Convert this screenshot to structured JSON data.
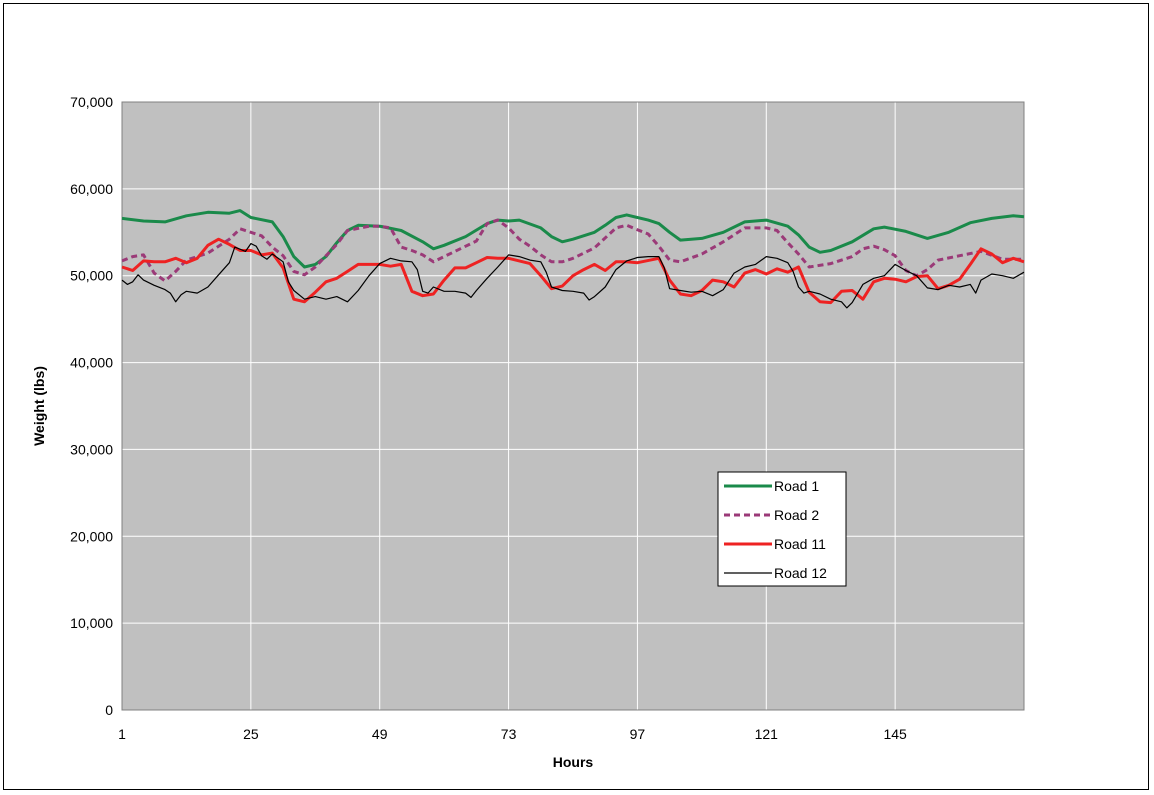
{
  "chart_data": {
    "type": "line",
    "title": "",
    "xlabel": "Hours",
    "ylabel": "Weight (lbs)",
    "ylim": [
      0,
      70000
    ],
    "xlim": [
      1,
      169
    ],
    "x_ticks": [
      1,
      25,
      49,
      73,
      97,
      121,
      145
    ],
    "y_ticks": [
      0,
      10000,
      20000,
      30000,
      40000,
      50000,
      60000,
      70000
    ],
    "y_tick_labels": [
      "0",
      "10,000",
      "20,000",
      "30,000",
      "40,000",
      "50,000",
      "60,000",
      "70,000"
    ],
    "grid": true,
    "plot_background": "#c0c0c0",
    "legend_position": "lower-right",
    "series": [
      {
        "name": "Road 1",
        "color": "#1a8a4a",
        "style": "solid",
        "width": 3,
        "points": [
          [
            1,
            56600
          ],
          [
            5,
            56300
          ],
          [
            9,
            56200
          ],
          [
            13,
            56900
          ],
          [
            17,
            57300
          ],
          [
            21,
            57200
          ],
          [
            23,
            57500
          ],
          [
            25,
            56700
          ],
          [
            29,
            56200
          ],
          [
            31,
            54500
          ],
          [
            33,
            52200
          ],
          [
            35,
            51000
          ],
          [
            37,
            51300
          ],
          [
            39,
            52200
          ],
          [
            41,
            53800
          ],
          [
            43,
            55200
          ],
          [
            45,
            55800
          ],
          [
            49,
            55700
          ],
          [
            53,
            55200
          ],
          [
            57,
            53900
          ],
          [
            59,
            53100
          ],
          [
            61,
            53500
          ],
          [
            65,
            54500
          ],
          [
            69,
            56000
          ],
          [
            71,
            56400
          ],
          [
            73,
            56300
          ],
          [
            75,
            56400
          ],
          [
            79,
            55500
          ],
          [
            81,
            54500
          ],
          [
            83,
            53900
          ],
          [
            85,
            54200
          ],
          [
            89,
            55000
          ],
          [
            91,
            55800
          ],
          [
            93,
            56700
          ],
          [
            95,
            57000
          ],
          [
            99,
            56400
          ],
          [
            101,
            56000
          ],
          [
            103,
            55000
          ],
          [
            105,
            54100
          ],
          [
            109,
            54300
          ],
          [
            113,
            55000
          ],
          [
            117,
            56200
          ],
          [
            121,
            56400
          ],
          [
            125,
            55700
          ],
          [
            127,
            54700
          ],
          [
            129,
            53300
          ],
          [
            131,
            52700
          ],
          [
            133,
            52900
          ],
          [
            137,
            53900
          ],
          [
            141,
            55400
          ],
          [
            143,
            55600
          ],
          [
            147,
            55100
          ],
          [
            151,
            54300
          ],
          [
            155,
            55000
          ],
          [
            159,
            56100
          ],
          [
            163,
            56600
          ],
          [
            167,
            56900
          ],
          [
            169,
            56800
          ]
        ]
      },
      {
        "name": "Road 2",
        "color": "#9b3a78",
        "style": "dashed",
        "width": 3,
        "points": [
          [
            1,
            51700
          ],
          [
            3,
            52200
          ],
          [
            5,
            52400
          ],
          [
            7,
            50300
          ],
          [
            9,
            49400
          ],
          [
            11,
            50500
          ],
          [
            13,
            51800
          ],
          [
            17,
            52600
          ],
          [
            21,
            54200
          ],
          [
            23,
            55400
          ],
          [
            25,
            55000
          ],
          [
            27,
            54600
          ],
          [
            29,
            53300
          ],
          [
            31,
            52300
          ],
          [
            33,
            50500
          ],
          [
            35,
            50100
          ],
          [
            37,
            51000
          ],
          [
            41,
            53600
          ],
          [
            43,
            55200
          ],
          [
            47,
            55700
          ],
          [
            49,
            55700
          ],
          [
            51,
            55500
          ],
          [
            53,
            53300
          ],
          [
            55,
            52900
          ],
          [
            57,
            52400
          ],
          [
            59,
            51600
          ],
          [
            63,
            52800
          ],
          [
            67,
            54000
          ],
          [
            69,
            56000
          ],
          [
            71,
            56400
          ],
          [
            73,
            55500
          ],
          [
            75,
            54200
          ],
          [
            77,
            53400
          ],
          [
            79,
            52400
          ],
          [
            81,
            51600
          ],
          [
            83,
            51600
          ],
          [
            85,
            52000
          ],
          [
            89,
            53200
          ],
          [
            93,
            55500
          ],
          [
            95,
            55800
          ],
          [
            97,
            55300
          ],
          [
            99,
            54800
          ],
          [
            101,
            53400
          ],
          [
            103,
            51800
          ],
          [
            105,
            51600
          ],
          [
            109,
            52500
          ],
          [
            113,
            53900
          ],
          [
            117,
            55500
          ],
          [
            121,
            55500
          ],
          [
            123,
            55200
          ],
          [
            125,
            53800
          ],
          [
            127,
            52500
          ],
          [
            129,
            51000
          ],
          [
            133,
            51400
          ],
          [
            137,
            52200
          ],
          [
            139,
            53100
          ],
          [
            141,
            53400
          ],
          [
            143,
            53000
          ],
          [
            145,
            52300
          ],
          [
            147,
            50600
          ],
          [
            149,
            50000
          ],
          [
            151,
            50700
          ],
          [
            153,
            51800
          ],
          [
            157,
            52300
          ],
          [
            161,
            52800
          ],
          [
            165,
            51900
          ],
          [
            169,
            51900
          ]
        ]
      },
      {
        "name": "Road 11",
        "color": "#ee2222",
        "style": "solid",
        "width": 3,
        "points": [
          [
            1,
            51000
          ],
          [
            3,
            50600
          ],
          [
            5,
            51700
          ],
          [
            7,
            51600
          ],
          [
            9,
            51600
          ],
          [
            11,
            52000
          ],
          [
            13,
            51500
          ],
          [
            15,
            52000
          ],
          [
            17,
            53500
          ],
          [
            19,
            54200
          ],
          [
            21,
            53600
          ],
          [
            23,
            52900
          ],
          [
            25,
            52900
          ],
          [
            27,
            52400
          ],
          [
            29,
            52600
          ],
          [
            31,
            50900
          ],
          [
            33,
            47300
          ],
          [
            35,
            47000
          ],
          [
            37,
            48100
          ],
          [
            39,
            49300
          ],
          [
            41,
            49700
          ],
          [
            43,
            50500
          ],
          [
            45,
            51300
          ],
          [
            49,
            51300
          ],
          [
            51,
            51100
          ],
          [
            53,
            51300
          ],
          [
            55,
            48200
          ],
          [
            57,
            47700
          ],
          [
            59,
            47900
          ],
          [
            61,
            49500
          ],
          [
            63,
            50900
          ],
          [
            65,
            50900
          ],
          [
            67,
            51500
          ],
          [
            69,
            52100
          ],
          [
            71,
            52000
          ],
          [
            73,
            52000
          ],
          [
            77,
            51400
          ],
          [
            79,
            50000
          ],
          [
            81,
            48500
          ],
          [
            83,
            48800
          ],
          [
            85,
            50000
          ],
          [
            87,
            50700
          ],
          [
            89,
            51300
          ],
          [
            91,
            50600
          ],
          [
            93,
            51600
          ],
          [
            95,
            51600
          ],
          [
            97,
            51500
          ],
          [
            101,
            52000
          ],
          [
            103,
            49500
          ],
          [
            105,
            47900
          ],
          [
            107,
            47700
          ],
          [
            109,
            48300
          ],
          [
            111,
            49500
          ],
          [
            113,
            49300
          ],
          [
            115,
            48700
          ],
          [
            117,
            50300
          ],
          [
            119,
            50700
          ],
          [
            121,
            50200
          ],
          [
            123,
            50800
          ],
          [
            125,
            50400
          ],
          [
            127,
            51000
          ],
          [
            129,
            48100
          ],
          [
            131,
            47000
          ],
          [
            133,
            46900
          ],
          [
            135,
            48200
          ],
          [
            137,
            48300
          ],
          [
            139,
            47300
          ],
          [
            141,
            49300
          ],
          [
            143,
            49700
          ],
          [
            145,
            49600
          ],
          [
            147,
            49300
          ],
          [
            149,
            49900
          ],
          [
            151,
            50000
          ],
          [
            153,
            48500
          ],
          [
            155,
            48900
          ],
          [
            157,
            49600
          ],
          [
            159,
            51300
          ],
          [
            161,
            53100
          ],
          [
            163,
            52500
          ],
          [
            165,
            51500
          ],
          [
            167,
            52000
          ],
          [
            169,
            51600
          ]
        ]
      },
      {
        "name": "Road 12",
        "color": "#000000",
        "style": "solid",
        "width": 1.2,
        "points": [
          [
            1,
            49500
          ],
          [
            2,
            49000
          ],
          [
            3,
            49300
          ],
          [
            4,
            50100
          ],
          [
            5,
            49500
          ],
          [
            7,
            48900
          ],
          [
            9,
            48400
          ],
          [
            10,
            48000
          ],
          [
            11,
            47000
          ],
          [
            12,
            47800
          ],
          [
            13,
            48200
          ],
          [
            15,
            48000
          ],
          [
            17,
            48700
          ],
          [
            19,
            50100
          ],
          [
            21,
            51500
          ],
          [
            22,
            53300
          ],
          [
            24,
            52800
          ],
          [
            25,
            53700
          ],
          [
            26,
            53400
          ],
          [
            27,
            52300
          ],
          [
            28,
            51900
          ],
          [
            29,
            52500
          ],
          [
            31,
            51600
          ],
          [
            32,
            49300
          ],
          [
            33,
            48300
          ],
          [
            35,
            47300
          ],
          [
            37,
            47600
          ],
          [
            39,
            47300
          ],
          [
            41,
            47600
          ],
          [
            43,
            47000
          ],
          [
            45,
            48300
          ],
          [
            47,
            50000
          ],
          [
            49,
            51400
          ],
          [
            51,
            52000
          ],
          [
            53,
            51700
          ],
          [
            55,
            51600
          ],
          [
            56,
            50700
          ],
          [
            57,
            48200
          ],
          [
            58,
            48000
          ],
          [
            59,
            48700
          ],
          [
            61,
            48200
          ],
          [
            63,
            48200
          ],
          [
            65,
            48000
          ],
          [
            66,
            47500
          ],
          [
            67,
            48300
          ],
          [
            69,
            49700
          ],
          [
            71,
            51000
          ],
          [
            73,
            52400
          ],
          [
            75,
            52200
          ],
          [
            77,
            51800
          ],
          [
            79,
            51600
          ],
          [
            80,
            50400
          ],
          [
            81,
            48700
          ],
          [
            83,
            48300
          ],
          [
            85,
            48200
          ],
          [
            87,
            48000
          ],
          [
            88,
            47200
          ],
          [
            89,
            47600
          ],
          [
            91,
            48700
          ],
          [
            93,
            50700
          ],
          [
            95,
            51700
          ],
          [
            97,
            52100
          ],
          [
            99,
            52200
          ],
          [
            101,
            52200
          ],
          [
            102,
            50900
          ],
          [
            103,
            48500
          ],
          [
            105,
            48300
          ],
          [
            107,
            48100
          ],
          [
            109,
            48200
          ],
          [
            111,
            47700
          ],
          [
            113,
            48400
          ],
          [
            115,
            50300
          ],
          [
            117,
            51000
          ],
          [
            119,
            51300
          ],
          [
            121,
            52200
          ],
          [
            123,
            52000
          ],
          [
            125,
            51500
          ],
          [
            126,
            50500
          ],
          [
            127,
            48700
          ],
          [
            128,
            48000
          ],
          [
            129,
            48200
          ],
          [
            131,
            47900
          ],
          [
            133,
            47300
          ],
          [
            135,
            47000
          ],
          [
            136,
            46300
          ],
          [
            137,
            46900
          ],
          [
            139,
            49000
          ],
          [
            141,
            49700
          ],
          [
            143,
            50000
          ],
          [
            145,
            51300
          ],
          [
            147,
            50600
          ],
          [
            149,
            50000
          ],
          [
            151,
            48600
          ],
          [
            153,
            48400
          ],
          [
            155,
            48900
          ],
          [
            157,
            48700
          ],
          [
            159,
            49000
          ],
          [
            160,
            48000
          ],
          [
            161,
            49500
          ],
          [
            163,
            50200
          ],
          [
            165,
            50000
          ],
          [
            167,
            49700
          ],
          [
            169,
            50400
          ]
        ]
      }
    ]
  }
}
